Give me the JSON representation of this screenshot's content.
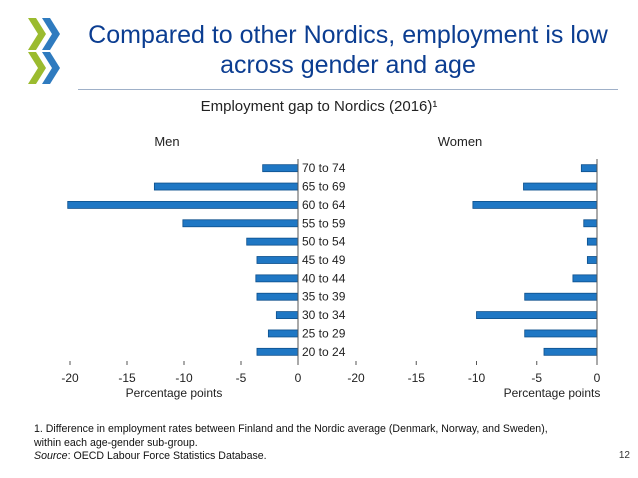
{
  "slide": {
    "title": "Compared to other Nordics, employment is low across gender and age",
    "footnote": "1. Difference in employment rates between Finland and the Nordic average (Denmark, Norway, and Sweden), within each age-gender sub-group.",
    "source_label": "Source",
    "source_text": ": OECD Labour Force Statistics Database.",
    "page_number": "12",
    "logo_icon": "oecd-logo-icon",
    "logo_colors": [
      "#9bbb2f",
      "#2f7bbf"
    ]
  },
  "chart_data": {
    "type": "bar",
    "orientation": "horizontal",
    "title": "Employment gap to Nordics (2016)¹",
    "categories": [
      "70 to 74",
      "65 to 69",
      "60 to 64",
      "55 to 59",
      "50 to 54",
      "45 to 49",
      "40 to 44",
      "35 to 39",
      "30 to 34",
      "25 to 29",
      "20 to 24"
    ],
    "bar_color": "#1f77c4",
    "panels": [
      {
        "title": "Men",
        "xlabel": "Percentage points",
        "xlim": [
          -20,
          0
        ],
        "xticks": [
          -20,
          -15,
          -10,
          -5,
          0
        ],
        "values": [
          -3.1,
          -12.6,
          -20.2,
          -10.1,
          -4.5,
          -3.6,
          -3.7,
          -3.6,
          -1.9,
          -2.6,
          -3.6
        ]
      },
      {
        "title": "Women",
        "xlabel": "Percentage points",
        "xlim": [
          -20,
          0
        ],
        "xticks": [
          -20,
          -15,
          -10,
          -5,
          0
        ],
        "values": [
          -1.3,
          -6.1,
          -10.3,
          -1.1,
          -0.8,
          -0.8,
          -2.0,
          -6.0,
          -10.0,
          -6.0,
          -4.4
        ]
      }
    ]
  }
}
